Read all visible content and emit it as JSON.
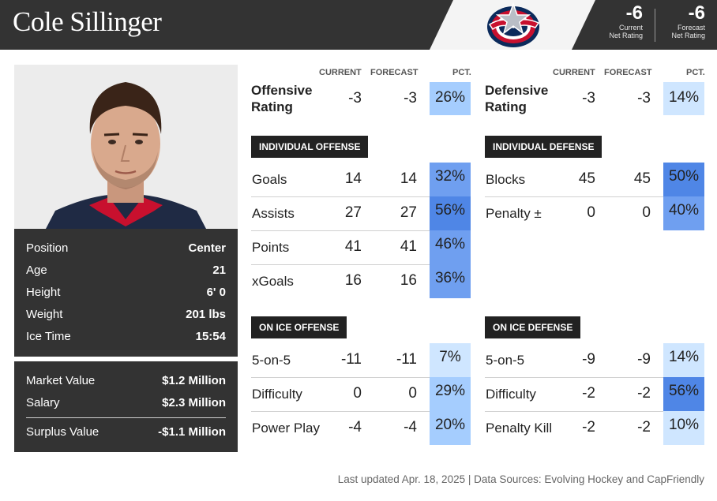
{
  "player": {
    "name": "Cole Sillinger"
  },
  "net_rating": {
    "current_value": "-6",
    "current_label_1": "Current",
    "current_label_2": "Net Rating",
    "forecast_value": "-6",
    "forecast_label_1": "Forecast",
    "forecast_label_2": "Net Rating"
  },
  "colors": {
    "header_bg": "#333333",
    "pct_low": "#cfe6ff",
    "pct_mid": "#a5cdfe",
    "pct_high": "#6f9ff0",
    "pct_higher": "#4f86e6"
  },
  "bio": [
    {
      "label": "Position",
      "value": "Center"
    },
    {
      "label": "Age",
      "value": "21"
    },
    {
      "label": "Height",
      "value": "6' 0"
    },
    {
      "label": "Weight",
      "value": "201 lbs"
    },
    {
      "label": "Ice Time",
      "value": "15:54"
    }
  ],
  "contract": {
    "market_label": "Market Value",
    "market_value": "$1.2 Million",
    "salary_label": "Salary",
    "salary_value": "$2.3 Million",
    "surplus_label": "Surplus Value",
    "surplus_value": "-$1.1 Million"
  },
  "column_heads": {
    "current": "CURRENT",
    "forecast": "FORECAST",
    "pct": "PCT."
  },
  "offense": {
    "rating_label_1": "Offensive",
    "rating_label_2": "Rating",
    "rating_current": "-3",
    "rating_forecast": "-3",
    "rating_pct": "26%",
    "rating_pct_value": 26,
    "individual_title": "INDIVIDUAL OFFENSE",
    "individual": [
      {
        "label": "Goals",
        "current": "14",
        "forecast": "14",
        "pct": "32%",
        "pct_value": 32
      },
      {
        "label": "Assists",
        "current": "27",
        "forecast": "27",
        "pct": "56%",
        "pct_value": 56
      },
      {
        "label": "Points",
        "current": "41",
        "forecast": "41",
        "pct": "46%",
        "pct_value": 46
      },
      {
        "label": "xGoals",
        "current": "16",
        "forecast": "16",
        "pct": "36%",
        "pct_value": 36
      }
    ],
    "on_ice_title": "ON ICE OFFENSE",
    "on_ice": [
      {
        "label": "5-on-5",
        "current": "-11",
        "forecast": "-11",
        "pct": "7%",
        "pct_value": 7
      },
      {
        "label": "Difficulty",
        "current": "0",
        "forecast": "0",
        "pct": "29%",
        "pct_value": 29
      },
      {
        "label": "Power Play",
        "current": "-4",
        "forecast": "-4",
        "pct": "20%",
        "pct_value": 20
      }
    ]
  },
  "defense": {
    "rating_label_1": "Defensive",
    "rating_label_2": "Rating",
    "rating_current": "-3",
    "rating_forecast": "-3",
    "rating_pct": "14%",
    "rating_pct_value": 14,
    "individual_title": "INDIVIDUAL DEFENSE",
    "individual": [
      {
        "label": "Blocks",
        "current": "45",
        "forecast": "45",
        "pct": "50%",
        "pct_value": 50
      },
      {
        "label": "Penalty ±",
        "current": "0",
        "forecast": "0",
        "pct": "40%",
        "pct_value": 40
      }
    ],
    "on_ice_title": "ON ICE DEFENSE",
    "on_ice": [
      {
        "label": "5-on-5",
        "current": "-9",
        "forecast": "-9",
        "pct": "14%",
        "pct_value": 14
      },
      {
        "label": "Difficulty",
        "current": "-2",
        "forecast": "-2",
        "pct": "56%",
        "pct_value": 56
      },
      {
        "label": "Penalty Kill",
        "current": "-2",
        "forecast": "-2",
        "pct": "10%",
        "pct_value": 10
      }
    ]
  },
  "footer": {
    "text": "Last updated Apr. 18, 2025 | Data Sources: Evolving Hockey and CapFriendly"
  },
  "logo": {
    "icon": "blue-jackets-logo-icon"
  }
}
